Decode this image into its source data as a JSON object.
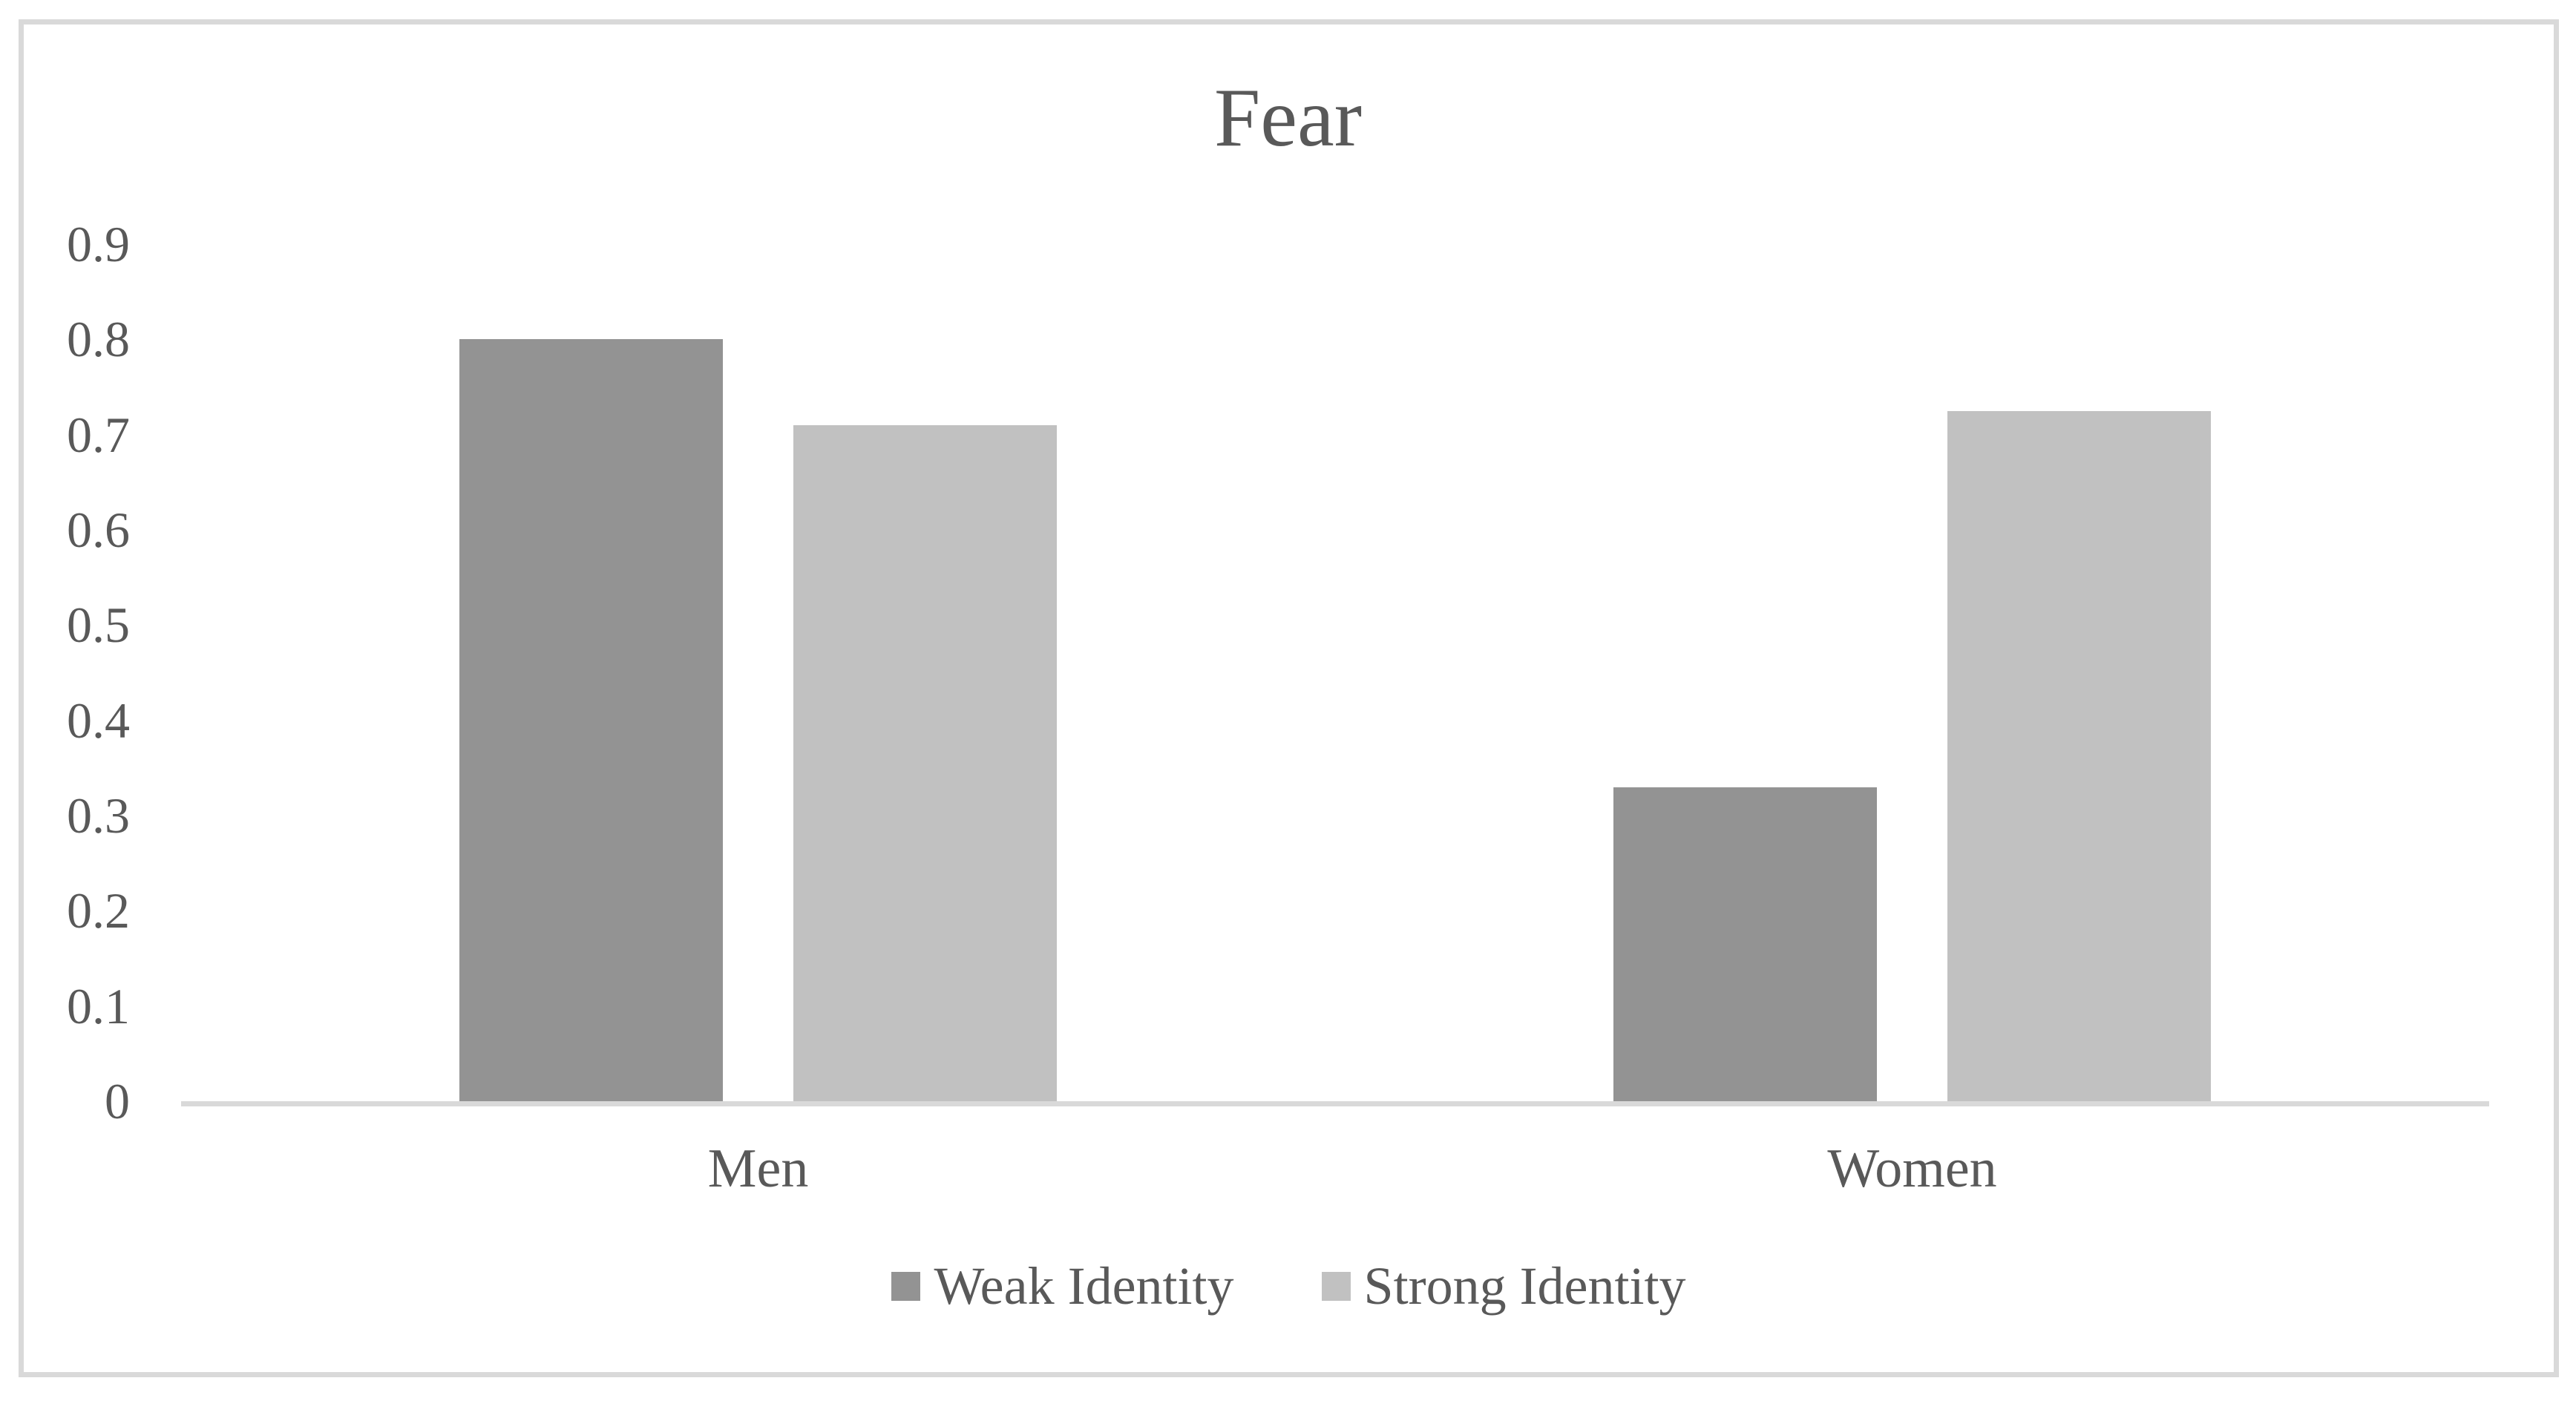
{
  "chart": {
    "text_color": "#595959",
    "axis_color": "#d9d9d9",
    "frame_border_color": "#d9d9d9",
    "background_color": "#ffffff"
  },
  "chart_data": {
    "type": "bar",
    "title": "Fear",
    "categories": [
      "Men",
      "Women"
    ],
    "series": [
      {
        "name": "Weak Identity",
        "color": "#939393",
        "values": [
          0.8,
          0.33
        ]
      },
      {
        "name": "Strong Identity",
        "color": "#c1c1c1",
        "values": [
          0.71,
          0.725
        ]
      }
    ],
    "xlabel": "",
    "ylabel": "",
    "ylim": [
      0,
      0.9
    ],
    "ytick_step": 0.1,
    "ytick_labels": [
      "0",
      "0.1",
      "0.2",
      "0.3",
      "0.4",
      "0.5",
      "0.6",
      "0.7",
      "0.8",
      "0.9"
    ],
    "grid": false,
    "legend_position": "bottom"
  }
}
